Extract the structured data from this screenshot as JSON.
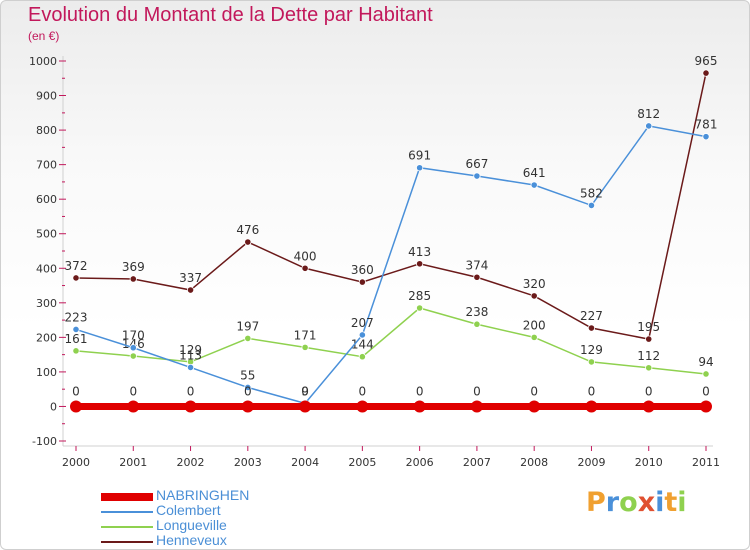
{
  "title": "Evolution du Montant de la Dette par Habitant",
  "subtitle": "(en €)",
  "chart_data": {
    "type": "line",
    "x": [
      "2000",
      "2001",
      "2002",
      "2003",
      "2004",
      "2005",
      "2006",
      "2007",
      "2008",
      "2009",
      "2010",
      "2011"
    ],
    "ylim": [
      -100,
      1000
    ],
    "yticks": [
      -100,
      0,
      100,
      200,
      300,
      400,
      500,
      600,
      700,
      800,
      900,
      1000
    ],
    "grid": false,
    "legend_position": "bottom-left",
    "series": [
      {
        "name": "NABRINGHEN",
        "color": "#e00000",
        "values": [
          0,
          0,
          0,
          0,
          0,
          0,
          0,
          0,
          0,
          0,
          0,
          0
        ]
      },
      {
        "name": "Colembert",
        "color": "#4a90d9",
        "values": [
          223,
          170,
          113,
          55,
          9,
          207,
          691,
          667,
          641,
          582,
          812,
          781
        ]
      },
      {
        "name": "Longueville",
        "color": "#8fd14f",
        "values": [
          161,
          146,
          129,
          197,
          171,
          144,
          285,
          238,
          200,
          129,
          112,
          94
        ]
      },
      {
        "name": "Henneveux",
        "color": "#6b1a1a",
        "values": [
          372,
          369,
          337,
          476,
          400,
          360,
          413,
          374,
          320,
          227,
          195,
          965
        ]
      }
    ]
  },
  "logo": {
    "letters": [
      "P",
      "r",
      "o",
      "x",
      "i",
      "t",
      "i"
    ],
    "colors": [
      "#f0a030",
      "#4a90d9",
      "#8fd14f",
      "#e05030",
      "#4a90d9",
      "#f0a030",
      "#8fd14f"
    ]
  }
}
